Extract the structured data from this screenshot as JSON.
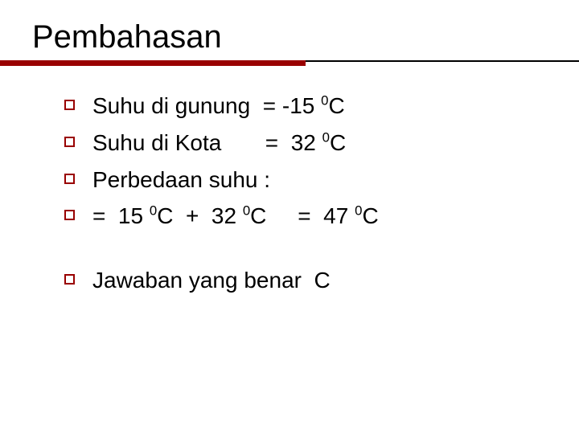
{
  "title": "Pembahasan",
  "items": [
    {
      "prefix": "Suhu di gunung  = -15 ",
      "sup1": "0",
      "mid1": "C",
      "sup2": "",
      "mid2": "",
      "sup3": "",
      "mid3": ""
    },
    {
      "prefix": "Suhu di Kota       =  32 ",
      "sup1": "0",
      "mid1": "C",
      "sup2": "",
      "mid2": "",
      "sup3": "",
      "mid3": ""
    },
    {
      "prefix": "Perbedaan suhu :",
      "sup1": "",
      "mid1": "",
      "sup2": "",
      "mid2": "",
      "sup3": "",
      "mid3": ""
    },
    {
      "prefix": "=  15 ",
      "sup1": "0",
      "mid1": "C  +  32 ",
      "sup2": "0",
      "mid2": "C     =  47 ",
      "sup3": "0",
      "mid3": "C"
    }
  ],
  "answer": "Jawaban yang benar  C",
  "colors": {
    "accent": "#990000",
    "text": "#000000",
    "background": "#ffffff"
  }
}
